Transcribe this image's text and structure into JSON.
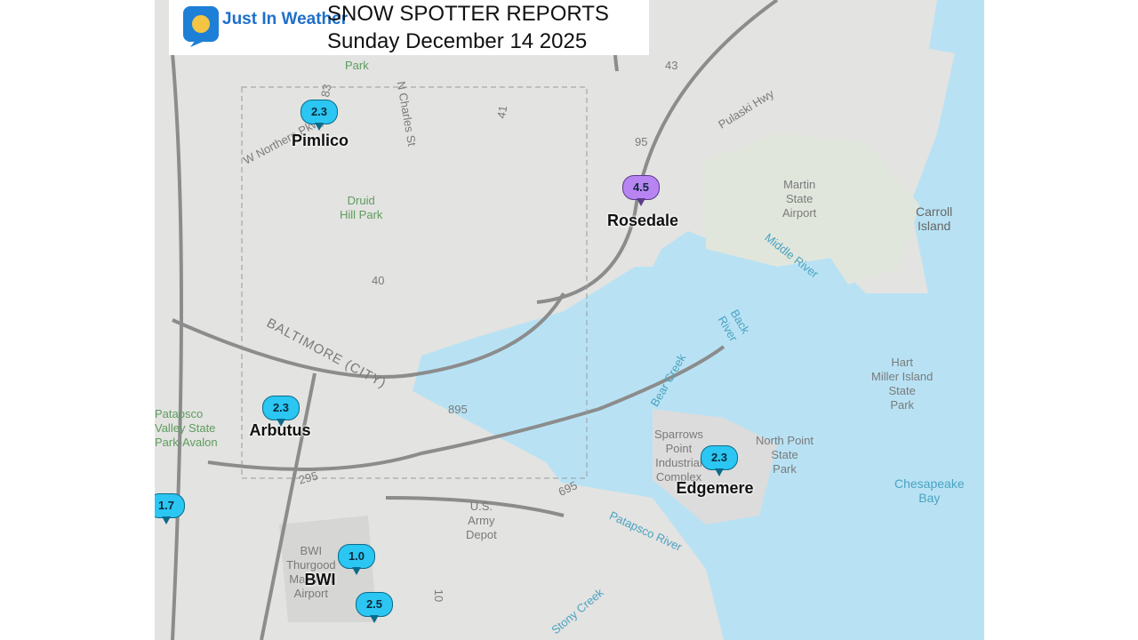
{
  "header": {
    "logo": "Just In Weather",
    "title": "SNOW SPOTTER REPORTS",
    "date": "Sunday December 14 2025"
  },
  "reports": [
    {
      "value": "2.3",
      "place": "Pimlico"
    },
    {
      "value": "4.5",
      "place": "Rosedale"
    },
    {
      "value": "2.3",
      "place": "Arbutus"
    },
    {
      "value": "2.3",
      "place": "Edgemere"
    },
    {
      "value": "1.7"
    },
    {
      "value": "1.0",
      "place": "BWI"
    },
    {
      "value": "2.5"
    }
  ],
  "map_labels": [
    {
      "lines": [
        "Park"
      ]
    },
    {
      "lines": [
        "Druid",
        "Hill Park"
      ]
    },
    {
      "lines": [
        "Martin",
        "State",
        "Airport"
      ]
    },
    {
      "lines": [
        "Carroll",
        "Island"
      ]
    },
    {
      "lines": [
        "Middle River"
      ]
    },
    {
      "lines": [
        "Back",
        "River"
      ]
    },
    {
      "lines": [
        "Bear Creek"
      ]
    },
    {
      "lines": [
        "Hart",
        "Miller Island",
        "State",
        "Park"
      ]
    },
    {
      "lines": [
        "North Point",
        "State",
        "Park"
      ]
    },
    {
      "lines": [
        "Sparrows",
        "Point",
        "Industrial",
        "Complex"
      ]
    },
    {
      "lines": [
        "Chesapeake",
        "Bay"
      ]
    },
    {
      "lines": [
        "Patapsco River"
      ]
    },
    {
      "lines": [
        "Stony Creek"
      ]
    },
    {
      "lines": [
        "U.S.",
        "Army",
        "Depot"
      ]
    },
    {
      "lines": [
        "BWI",
        "Thurgood",
        "Marshall",
        "Airport"
      ]
    },
    {
      "lines": [
        "BALTIMORE (CITY)"
      ]
    },
    {
      "lines": [
        "Patapsco",
        "Valley State",
        "Park-Avalon"
      ]
    },
    {
      "lines": [
        "Pulaski Hwy"
      ]
    },
    {
      "lines": [
        "N Charles St"
      ]
    },
    {
      "lines": [
        "W Northern Pkwy"
      ]
    },
    {
      "lines": [
        "95"
      ]
    },
    {
      "lines": [
        "895"
      ]
    },
    {
      "lines": [
        "695"
      ]
    },
    {
      "lines": [
        "295"
      ]
    },
    {
      "lines": [
        "40"
      ]
    },
    {
      "lines": [
        "83"
      ]
    },
    {
      "lines": [
        "41"
      ]
    },
    {
      "lines": [
        "43"
      ]
    },
    {
      "lines": [
        "10"
      ]
    }
  ]
}
